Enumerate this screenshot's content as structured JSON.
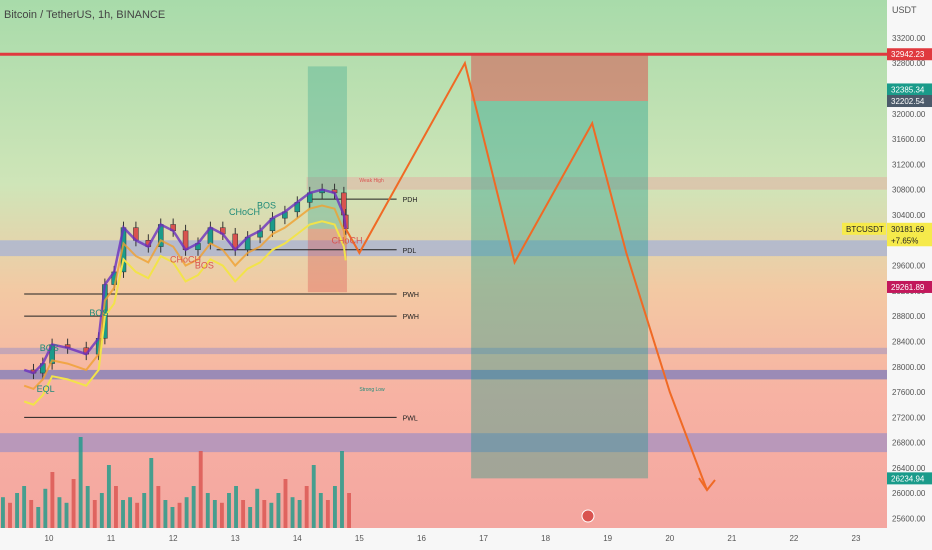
{
  "symbol_title": "Bitcoin / TetherUS, 1h, BINANCE",
  "currency": "USDT",
  "chart_data": {
    "type": "candlestick",
    "title": "Bitcoin / TetherUS, 1h, BINANCE",
    "y_unit": "USDT",
    "ylim": [
      25450,
      33800
    ],
    "y_ticks": [
      25600,
      26000,
      26400,
      26800,
      27200,
      27600,
      28000,
      28400,
      28800,
      29200,
      29600,
      30000,
      30400,
      30800,
      31200,
      31600,
      32000,
      32400,
      32800,
      33200
    ],
    "x_day_positions": [
      10,
      11,
      12,
      13,
      14,
      15,
      16,
      17,
      18,
      19,
      20,
      21,
      22,
      23
    ],
    "x_ticks": [
      "10",
      "11",
      "12",
      "13",
      "14",
      "15",
      "16",
      "17",
      "18",
      "19",
      "20",
      "21",
      "22",
      "23"
    ],
    "price_path": [
      [
        9.6,
        27950
      ],
      [
        9.75,
        27900
      ],
      [
        9.9,
        28050
      ],
      [
        10.05,
        28350
      ],
      [
        10.3,
        28300
      ],
      [
        10.6,
        28200
      ],
      [
        10.8,
        28450
      ],
      [
        10.9,
        29300
      ],
      [
        11.05,
        29500
      ],
      [
        11.2,
        30200
      ],
      [
        11.4,
        30000
      ],
      [
        11.6,
        29900
      ],
      [
        11.8,
        30250
      ],
      [
        12.0,
        30150
      ],
      [
        12.2,
        29850
      ],
      [
        12.4,
        29950
      ],
      [
        12.6,
        30200
      ],
      [
        12.8,
        30100
      ],
      [
        13.0,
        29850
      ],
      [
        13.2,
        30050
      ],
      [
        13.4,
        30150
      ],
      [
        13.6,
        30350
      ],
      [
        13.8,
        30450
      ],
      [
        14.0,
        30600
      ],
      [
        14.2,
        30750
      ],
      [
        14.4,
        30800
      ],
      [
        14.6,
        30750
      ],
      [
        14.75,
        30400
      ],
      [
        14.78,
        30181.69
      ]
    ],
    "volume_heights": [
      0.22,
      0.18,
      0.25,
      0.3,
      0.2,
      0.15,
      0.28,
      0.4,
      0.22,
      0.18,
      0.35,
      0.65,
      0.3,
      0.2,
      0.25,
      0.45,
      0.3,
      0.2,
      0.22,
      0.18,
      0.25,
      0.5,
      0.3,
      0.2,
      0.15,
      0.18,
      0.22,
      0.3,
      0.55,
      0.25,
      0.2,
      0.18,
      0.25,
      0.3,
      0.2,
      0.15,
      0.28,
      0.2,
      0.18,
      0.25,
      0.35,
      0.22,
      0.2,
      0.3,
      0.45,
      0.25,
      0.2,
      0.3,
      0.55,
      0.25
    ],
    "projection_path": [
      [
        14.78,
        30181.69
      ],
      [
        15.0,
        29800
      ],
      [
        16.7,
        32800
      ],
      [
        17.5,
        29650
      ],
      [
        18.75,
        31850
      ],
      [
        19.3,
        29800
      ],
      [
        20.0,
        27600
      ],
      [
        20.6,
        26050
      ]
    ],
    "levels": [
      {
        "label": "PDH",
        "price": 30650
      },
      {
        "label": "PDL",
        "price": 29850
      },
      {
        "label": "PWH",
        "price": 29150
      },
      {
        "label": "PWL",
        "price": 27200
      },
      {
        "label": "PWH",
        "price": 28800
      },
      {
        "label": "Weak High",
        "price": 30950
      },
      {
        "label": "Strong Low",
        "price": 27650
      }
    ],
    "structure_labels": [
      {
        "text": "EQL",
        "x": 9.8,
        "price": 27600,
        "color": "#1f8a78"
      },
      {
        "text": "BOS",
        "x": 9.85,
        "price": 28250,
        "color": "#1f8a78"
      },
      {
        "text": "BOS",
        "x": 10.65,
        "price": 28800,
        "color": "#1f8a78"
      },
      {
        "text": "CHoCH",
        "x": 11.95,
        "price": 29650,
        "color": "#d9534f"
      },
      {
        "text": "BOS",
        "x": 12.35,
        "price": 29550,
        "color": "#d9534f"
      },
      {
        "text": "CHoCH",
        "x": 12.9,
        "price": 30400,
        "color": "#1f8a78"
      },
      {
        "text": "BOS",
        "x": 13.35,
        "price": 30500,
        "color": "#1f8a78"
      },
      {
        "text": "CHoCH",
        "x": 14.55,
        "price": 29950,
        "color": "#d9534f"
      }
    ],
    "axis_badges": [
      {
        "text": "32942.23",
        "price": 32942.23,
        "color": "#e0393e"
      },
      {
        "text": "32385.34",
        "price": 32385.34,
        "color": "#1a9b8a"
      },
      {
        "text": "32202.54",
        "price": 32202.54,
        "color": "#4b5a6a"
      },
      {
        "text": "30181.69",
        "price": 30181.69,
        "color": "#f6ea4b"
      },
      {
        "text": "+7.65%",
        "price": 30000,
        "color": "#f6ea4b"
      },
      {
        "text": "29261.89",
        "price": 29261.89,
        "color": "#c2185b"
      },
      {
        "text": "26234.94",
        "price": 26234.94,
        "color": "#1a9b8a"
      }
    ],
    "symbol_badge": "BTCUSDT",
    "resistance_line": 32942.23
  }
}
